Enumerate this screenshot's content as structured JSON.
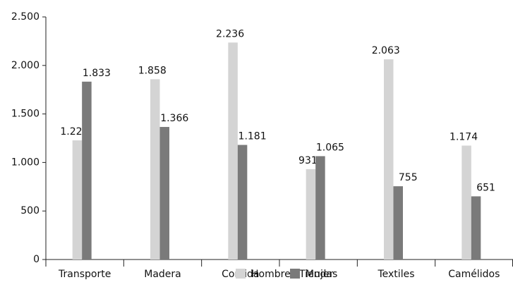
{
  "chart_data": {
    "type": "bar",
    "categories": [
      "Transporte",
      "Madera",
      "Comida",
      "Tiendas",
      "Textiles",
      "Camélidos"
    ],
    "series": [
      {
        "name": "Hombre",
        "color": "#d4d4d4",
        "values": [
          1228,
          1858,
          2236,
          931,
          2063,
          1174
        ],
        "value_labels": [
          "1.228",
          "1.858",
          "2.236",
          "931",
          "2.063",
          "1.174"
        ]
      },
      {
        "name": "Mujer",
        "color": "#7a7a7a",
        "values": [
          1833,
          1366,
          1181,
          1065,
          755,
          651
        ],
        "value_labels": [
          "1.833",
          "1.366",
          "1.181",
          "1.065",
          "755",
          "651"
        ]
      }
    ],
    "ylim": [
      0,
      2500
    ],
    "yticks": [
      0,
      500,
      {
        "value": 1000,
        "label": "1.000"
      },
      {
        "value": 1500,
        "label": "1.500"
      },
      {
        "value": 2000,
        "label": "2.000"
      },
      {
        "value": 2500,
        "label": "2.500"
      }
    ],
    "grid": false
  }
}
